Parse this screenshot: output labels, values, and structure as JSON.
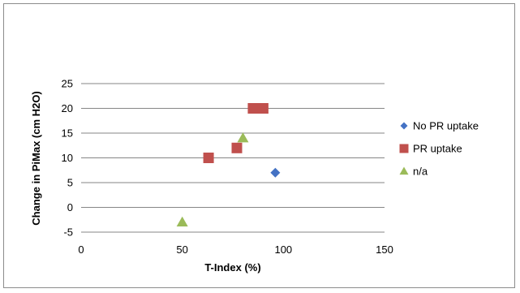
{
  "chart_data": {
    "type": "scatter",
    "title": "",
    "xlabel": "T-Index (%)",
    "ylabel": "Change in PiMax (cm H2O)",
    "xlim": [
      0,
      150
    ],
    "ylim": [
      -5,
      25
    ],
    "x_ticks": [
      0,
      50,
      100,
      150
    ],
    "y_ticks": [
      -5,
      0,
      5,
      10,
      15,
      20,
      25
    ],
    "x_tick_labels": [
      "0",
      "50",
      "100",
      "150"
    ],
    "y_tick_labels": [
      "-5",
      "0",
      "5",
      "10",
      "15",
      "20",
      "25"
    ],
    "grid": "horizontal",
    "legend_position": "right",
    "series": [
      {
        "name": "No PR uptake",
        "marker": "diamond",
        "color": "#4472C4",
        "points": [
          {
            "x": 96,
            "y": 7
          }
        ]
      },
      {
        "name": "PR uptake",
        "marker": "square",
        "color": "#C0504D",
        "points": [
          {
            "x": 63,
            "y": 10
          },
          {
            "x": 77,
            "y": 12
          },
          {
            "x": 85,
            "y": 20
          },
          {
            "x": 90,
            "y": 20
          }
        ]
      },
      {
        "name": "n/a",
        "marker": "triangle",
        "color": "#9BBB59",
        "points": [
          {
            "x": 50,
            "y": -3
          },
          {
            "x": 80,
            "y": 14
          }
        ]
      }
    ]
  }
}
